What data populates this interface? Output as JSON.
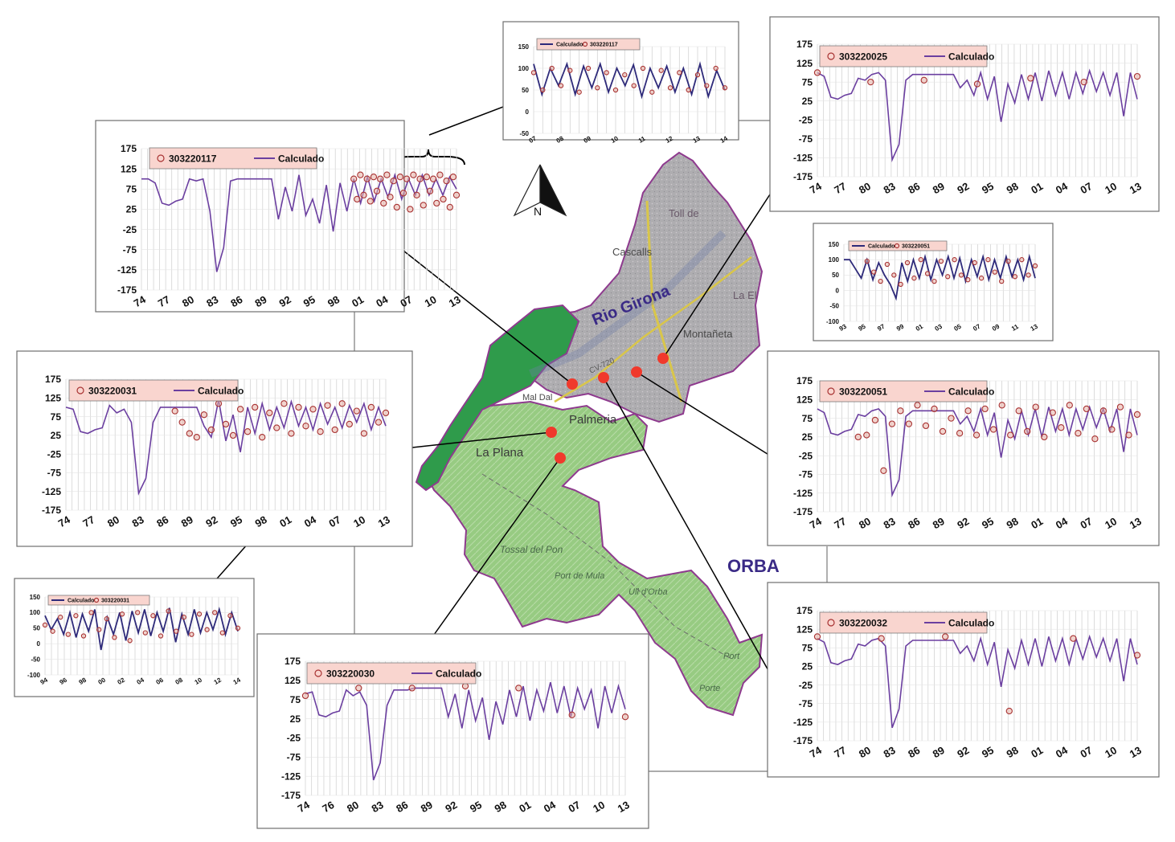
{
  "map": {
    "river_label": "Rio Girona",
    "region_label": "ORBA",
    "north_label": "N",
    "place_names": [
      "Toll de",
      "Cascalls",
      "La El",
      "Montañeta",
      "Mal Dal",
      "Palmeria",
      "La Plana",
      "Tossal del Pon",
      "Port de Mula",
      "Ull d'Orba",
      "Port",
      "Porte"
    ],
    "road_label": "CV-720",
    "colors": {
      "outline": "#8e3a8e",
      "zone_gray": "#a9a9ab",
      "zone_light_green": "#8fc87d",
      "zone_dark_green": "#2e9a4a",
      "site_dot": "#f0392c",
      "river_label": "#3a2a86",
      "road": "#d9c64a"
    }
  },
  "chart_data": [
    {
      "type": "line",
      "id": "c303220117",
      "series": [
        {
          "name": "303220117",
          "kind": "observed",
          "color": "#a83232"
        },
        {
          "name": "Calculado",
          "kind": "computed",
          "color": "#6b3fa0"
        }
      ],
      "legend_order": [
        "303220117",
        "Calculado"
      ],
      "x_tick_labels": [
        "74",
        "77",
        "80",
        "83",
        "86",
        "89",
        "92",
        "95",
        "98",
        "01",
        "04",
        "07",
        "10",
        "13"
      ],
      "y_ticks": [
        175,
        125,
        75,
        25,
        -25,
        -75,
        -125,
        -175
      ],
      "ylim": [
        -175,
        175
      ],
      "grid": true,
      "calc_values": [
        100,
        100,
        90,
        40,
        35,
        45,
        50,
        100,
        95,
        100,
        20,
        -130,
        -70,
        95,
        100,
        100,
        100,
        100,
        100,
        100,
        0,
        80,
        20,
        110,
        10,
        50,
        -10,
        85,
        -30,
        90,
        20,
        100,
        40,
        105,
        45,
        100,
        55,
        110,
        50,
        100,
        60,
        110,
        60,
        100,
        60,
        105,
        75
      ],
      "obs_values": [
        100,
        50,
        110,
        60,
        100,
        45,
        105,
        70,
        100,
        40,
        110,
        55,
        95,
        30,
        105,
        65,
        100,
        25,
        110,
        60,
        100,
        35,
        105,
        70,
        100,
        40,
        110,
        50,
        95,
        30,
        105,
        60
      ],
      "obs_start_index": 31
    },
    {
      "type": "line",
      "id": "c303220117_zoom",
      "series": [
        {
          "name": "Calculado",
          "kind": "computed",
          "color": "#2e2a7a"
        },
        {
          "name": "303220117",
          "kind": "observed",
          "color": "#a83232"
        }
      ],
      "legend_order": [
        "Calculado",
        "303220117"
      ],
      "x_tick_labels": [
        "07",
        "08",
        "09",
        "10",
        "11",
        "12",
        "13",
        "14"
      ],
      "y_ticks": [
        150,
        100,
        50,
        0,
        -50
      ],
      "ylim": [
        -50,
        150
      ],
      "grid": true,
      "calc_values": [
        110,
        40,
        100,
        60,
        110,
        40,
        105,
        55,
        110,
        45,
        100,
        60,
        108,
        35,
        100,
        55,
        105,
        45,
        100,
        40,
        110,
        35,
        95,
        50
      ],
      "obs_values": [
        90,
        50,
        100,
        60,
        95,
        45,
        100,
        55,
        90,
        50,
        85,
        60,
        100,
        45,
        95,
        55,
        90,
        50,
        85,
        60,
        100,
        55
      ],
      "obs_start_index": 0
    },
    {
      "type": "line",
      "id": "c303220025",
      "series": [
        {
          "name": "303220025",
          "kind": "observed",
          "color": "#a83232"
        },
        {
          "name": "Calculado",
          "kind": "computed",
          "color": "#6b3fa0"
        }
      ],
      "legend_order": [
        "303220025",
        "Calculado"
      ],
      "x_tick_labels": [
        "74",
        "77",
        "80",
        "83",
        "86",
        "89",
        "92",
        "95",
        "98",
        "01",
        "04",
        "07",
        "10",
        "13"
      ],
      "y_ticks": [
        175,
        125,
        75,
        25,
        -25,
        -75,
        -125,
        -175
      ],
      "ylim": [
        -175,
        175
      ],
      "grid": true,
      "calc_values": [
        100,
        90,
        35,
        30,
        40,
        45,
        85,
        80,
        95,
        100,
        80,
        -130,
        -90,
        80,
        95,
        95,
        95,
        95,
        95,
        95,
        95,
        60,
        80,
        40,
        100,
        30,
        90,
        -30,
        70,
        20,
        95,
        30,
        100,
        25,
        105,
        40,
        100,
        30,
        100,
        45,
        105,
        50,
        100,
        40,
        100,
        -15,
        100,
        30
      ],
      "obs_values": [
        100,
        75,
        80,
        70,
        85,
        75,
        90
      ],
      "obs_start_index": 0
    },
    {
      "type": "line",
      "id": "c303220051_zoom",
      "series": [
        {
          "name": "Calculado",
          "kind": "computed",
          "color": "#2e2a7a"
        },
        {
          "name": "303220051",
          "kind": "observed",
          "color": "#a83232"
        }
      ],
      "legend_order": [
        "Calculado",
        "303220051"
      ],
      "x_tick_labels": [
        "93",
        "95",
        "97",
        "99",
        "01",
        "03",
        "05",
        "07",
        "09",
        "11",
        "13"
      ],
      "y_ticks": [
        150,
        100,
        50,
        0,
        -50,
        -100
      ],
      "ylim": [
        -100,
        150
      ],
      "grid": true,
      "calc_values": [
        100,
        100,
        70,
        40,
        100,
        35,
        90,
        50,
        20,
        -25,
        90,
        30,
        100,
        40,
        110,
        35,
        100,
        50,
        110,
        40,
        105,
        30,
        100,
        45,
        110,
        35,
        100,
        40,
        110,
        45,
        100,
        35,
        110,
        40
      ],
      "obs_values": [
        95,
        60,
        30,
        85,
        50,
        20,
        90,
        40,
        100,
        55,
        30,
        95,
        45,
        100,
        50,
        35,
        90,
        40,
        100,
        60,
        30,
        95,
        45,
        100,
        50,
        80
      ],
      "obs_start_index": 4
    },
    {
      "type": "line",
      "id": "c303220051",
      "series": [
        {
          "name": "303220051",
          "kind": "observed",
          "color": "#a83232"
        },
        {
          "name": "Calculado",
          "kind": "computed",
          "color": "#6b3fa0"
        }
      ],
      "legend_order": [
        "303220051",
        "Calculado"
      ],
      "x_tick_labels": [
        "74",
        "77",
        "80",
        "83",
        "86",
        "89",
        "92",
        "95",
        "98",
        "01",
        "04",
        "07",
        "10",
        "13"
      ],
      "y_ticks": [
        175,
        125,
        75,
        25,
        -25,
        -75,
        -125,
        -175
      ],
      "ylim": [
        -175,
        175
      ],
      "grid": true,
      "calc_values": [
        100,
        90,
        35,
        30,
        40,
        45,
        85,
        80,
        95,
        100,
        80,
        -130,
        -90,
        80,
        95,
        95,
        95,
        95,
        95,
        95,
        95,
        60,
        80,
        40,
        100,
        30,
        90,
        -30,
        70,
        20,
        95,
        30,
        100,
        25,
        105,
        40,
        100,
        30,
        100,
        45,
        105,
        50,
        100,
        40,
        100,
        -15,
        100,
        30
      ],
      "obs_values": [
        25,
        30,
        70,
        -65,
        60,
        95,
        60,
        110,
        55,
        100,
        40,
        75,
        35,
        95,
        30,
        100,
        45,
        110,
        30,
        95,
        40,
        105,
        25,
        90,
        50,
        110,
        35,
        100,
        20,
        95,
        45,
        105,
        30,
        85
      ],
      "obs_start_index": 6
    },
    {
      "type": "line",
      "id": "c303220031",
      "series": [
        {
          "name": "303220031",
          "kind": "observed",
          "color": "#a83232"
        },
        {
          "name": "Calculado",
          "kind": "computed",
          "color": "#6b3fa0"
        }
      ],
      "legend_order": [
        "303220031",
        "Calculado"
      ],
      "x_tick_labels": [
        "74",
        "77",
        "80",
        "83",
        "86",
        "89",
        "92",
        "95",
        "98",
        "01",
        "04",
        "07",
        "10",
        "13"
      ],
      "y_ticks": [
        175,
        125,
        75,
        25,
        -25,
        -75,
        -125,
        -175
      ],
      "ylim": [
        -175,
        175
      ],
      "grid": true,
      "calc_values": [
        100,
        95,
        35,
        30,
        40,
        45,
        105,
        85,
        95,
        60,
        -130,
        -90,
        60,
        100,
        100,
        100,
        100,
        100,
        100,
        50,
        20,
        120,
        10,
        80,
        -20,
        100,
        30,
        110,
        40,
        100,
        45,
        115,
        50,
        100,
        40,
        110,
        55,
        100,
        45,
        105,
        60,
        110,
        40,
        100,
        50
      ],
      "obs_values": [
        90,
        60,
        30,
        20,
        80,
        40,
        110,
        55,
        25,
        95,
        35,
        100,
        20,
        85,
        45,
        110,
        30,
        100,
        50,
        95,
        35,
        105,
        40,
        110,
        55,
        90,
        30,
        100,
        60,
        85
      ],
      "obs_start_index": 15
    },
    {
      "type": "line",
      "id": "c303220031_zoom",
      "series": [
        {
          "name": "Calculado",
          "kind": "computed",
          "color": "#2e2a7a"
        },
        {
          "name": "303220031",
          "kind": "observed",
          "color": "#a83232"
        }
      ],
      "legend_order": [
        "Calculado",
        "303220031"
      ],
      "x_tick_labels": [
        "94",
        "96",
        "98",
        "00",
        "02",
        "04",
        "06",
        "08",
        "10",
        "12",
        "14"
      ],
      "y_ticks": [
        150,
        100,
        50,
        0,
        -50,
        -100
      ],
      "ylim": [
        -100,
        150
      ],
      "grid": true,
      "calc_values": [
        90,
        45,
        80,
        30,
        100,
        20,
        95,
        40,
        110,
        -20,
        85,
        30,
        100,
        10,
        105,
        35,
        110,
        25,
        100,
        40,
        115,
        5,
        95,
        30,
        110,
        35,
        100,
        45,
        110,
        30,
        100,
        40
      ],
      "obs_values": [
        60,
        40,
        85,
        30,
        90,
        25,
        100,
        45,
        80,
        20,
        95,
        10,
        100,
        35,
        90,
        25,
        105,
        40,
        85,
        30,
        95,
        45,
        100,
        35,
        90,
        50
      ],
      "obs_start_index": 0
    },
    {
      "type": "line",
      "id": "c303220030",
      "series": [
        {
          "name": "303220030",
          "kind": "observed",
          "color": "#a83232"
        },
        {
          "name": "Calculado",
          "kind": "computed",
          "color": "#6b3fa0"
        }
      ],
      "legend_order": [
        "303220030",
        "Calculado"
      ],
      "x_tick_labels": [
        "74",
        "76",
        "80",
        "83",
        "86",
        "89",
        "92",
        "95",
        "98",
        "01",
        "04",
        "07",
        "10",
        "13"
      ],
      "y_ticks": [
        175,
        125,
        75,
        25,
        -25,
        -75,
        -125,
        -175
      ],
      "ylim": [
        -175,
        175
      ],
      "grid": true,
      "calc_values": [
        90,
        95,
        35,
        30,
        40,
        45,
        100,
        85,
        95,
        60,
        -135,
        -90,
        60,
        100,
        100,
        100,
        105,
        105,
        105,
        105,
        105,
        30,
        90,
        0,
        100,
        20,
        80,
        -30,
        70,
        10,
        100,
        30,
        110,
        20,
        100,
        45,
        120,
        40,
        110,
        30,
        105,
        50,
        100,
        0,
        110,
        40,
        110,
        50
      ],
      "obs_values": [
        85,
        105,
        105,
        110,
        105,
        35,
        30
      ],
      "obs_start_index": 0
    },
    {
      "type": "line",
      "id": "c303220032",
      "series": [
        {
          "name": "303220032",
          "kind": "observed",
          "color": "#a83232"
        },
        {
          "name": "Calculado",
          "kind": "computed",
          "color": "#6b3fa0"
        }
      ],
      "legend_order": [
        "303220032",
        "Calculado"
      ],
      "x_tick_labels": [
        "74",
        "77",
        "80",
        "83",
        "86",
        "89",
        "92",
        "95",
        "98",
        "01",
        "04",
        "07",
        "10",
        "13"
      ],
      "y_ticks": [
        175,
        125,
        75,
        25,
        -25,
        -75,
        -125,
        -175
      ],
      "ylim": [
        -175,
        175
      ],
      "grid": true,
      "calc_values": [
        100,
        90,
        35,
        30,
        40,
        45,
        85,
        80,
        95,
        100,
        80,
        -140,
        -90,
        80,
        95,
        95,
        95,
        95,
        95,
        95,
        95,
        60,
        80,
        40,
        100,
        30,
        90,
        -30,
        70,
        20,
        95,
        30,
        100,
        25,
        105,
        40,
        100,
        30,
        100,
        45,
        105,
        50,
        100,
        40,
        100,
        -15,
        100,
        30
      ],
      "obs_values": [
        105,
        100,
        105,
        -95,
        100,
        55
      ],
      "obs_start_index": 0
    }
  ]
}
